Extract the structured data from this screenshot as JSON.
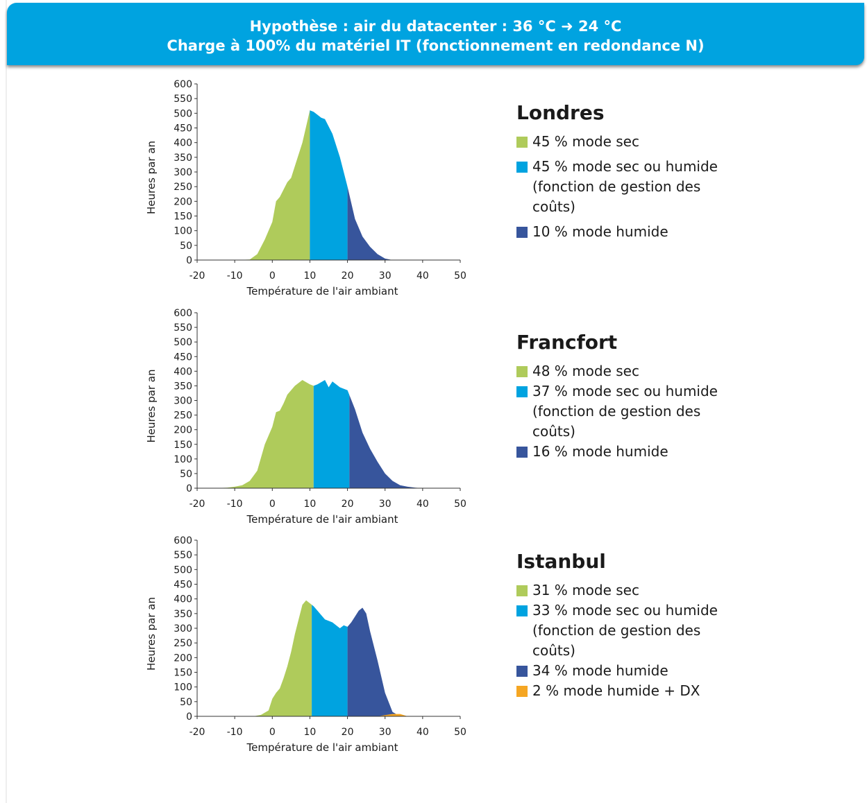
{
  "banner": {
    "line1": "Hypothèse : air du datacenter : 36 °C ➜ 24 °C",
    "line2": "Charge à 100% du matériel IT (fonctionnement en redondance N)"
  },
  "colors": {
    "dry": "#afcb5b",
    "dry_or_wet": "#00a3e0",
    "wet": "#37559c",
    "wet_dx": "#f5a623",
    "banner": "#00a3e0"
  },
  "chart_data": [
    {
      "type": "area",
      "title": "Londres",
      "xlabel": "Température de l'air ambiant",
      "ylabel": "Heures par an",
      "xlim": [
        -20,
        50
      ],
      "ylim": [
        0,
        600
      ],
      "xticks": [
        -20,
        -10,
        0,
        10,
        20,
        30,
        40,
        50
      ],
      "yticks": [
        0,
        50,
        100,
        150,
        200,
        250,
        300,
        350,
        400,
        450,
        500,
        550,
        600
      ],
      "x": [
        -20,
        -10,
        -6,
        -4,
        -2,
        0,
        1,
        2,
        4,
        5,
        6,
        8,
        10,
        11,
        12,
        13,
        14,
        16,
        18,
        20,
        22,
        24,
        26,
        28,
        30,
        32,
        34,
        50
      ],
      "series": [
        {
          "name": "45 % mode sec",
          "color_key": "dry",
          "x_range": [
            -20,
            10
          ]
        },
        {
          "name": "45 % mode sec ou humide (fonction de gestion des coûts)",
          "color_key": "dry_or_wet",
          "x_range": [
            10,
            20
          ]
        },
        {
          "name": "10 % mode humide",
          "color_key": "wet",
          "x_range": [
            20,
            50
          ]
        }
      ],
      "values": [
        0,
        0,
        2,
        20,
        70,
        130,
        200,
        215,
        265,
        280,
        320,
        400,
        510,
        505,
        495,
        485,
        480,
        430,
        350,
        250,
        140,
        80,
        45,
        20,
        5,
        0,
        0,
        0
      ]
    },
    {
      "type": "area",
      "title": "Francfort",
      "xlabel": "Température de l'air ambiant",
      "ylabel": "Heures par an",
      "xlim": [
        -20,
        50
      ],
      "ylim": [
        0,
        600
      ],
      "xticks": [
        -20,
        -10,
        0,
        10,
        20,
        30,
        40,
        50
      ],
      "yticks": [
        0,
        50,
        100,
        150,
        200,
        250,
        300,
        350,
        400,
        450,
        500,
        550,
        600
      ],
      "x": [
        -20,
        -16,
        -12,
        -10,
        -8,
        -6,
        -4,
        -2,
        0,
        1,
        2,
        3,
        4,
        6,
        8,
        10,
        11,
        12,
        14,
        15,
        16,
        18,
        20,
        22,
        24,
        26,
        28,
        30,
        32,
        34,
        36,
        38,
        40,
        50
      ],
      "series": [
        {
          "name": "48 % mode sec",
          "color_key": "dry",
          "x_range": [
            -20,
            11
          ]
        },
        {
          "name": "37 % mode sec ou humide (fonction de gestion des coûts)",
          "color_key": "dry_or_wet",
          "x_range": [
            11,
            20.5
          ]
        },
        {
          "name": "16 % mode humide",
          "color_key": "wet",
          "x_range": [
            20.5,
            50
          ]
        }
      ],
      "values": [
        0,
        0,
        2,
        5,
        10,
        25,
        60,
        150,
        210,
        260,
        265,
        290,
        320,
        350,
        370,
        355,
        350,
        355,
        370,
        345,
        365,
        345,
        335,
        270,
        190,
        135,
        90,
        50,
        25,
        10,
        5,
        2,
        0,
        0
      ]
    },
    {
      "type": "area",
      "title": "Istanbul",
      "xlabel": "Température de l'air ambiant",
      "ylabel": "Heures par an",
      "xlim": [
        -20,
        50
      ],
      "ylim": [
        0,
        600
      ],
      "xticks": [
        -20,
        -10,
        0,
        10,
        20,
        30,
        40,
        50
      ],
      "yticks": [
        0,
        50,
        100,
        150,
        200,
        250,
        300,
        350,
        400,
        450,
        500,
        550,
        600
      ],
      "x": [
        -20,
        -5,
        -3,
        -1,
        0,
        1,
        2,
        3,
        4,
        5,
        6,
        7,
        8,
        9,
        10,
        11,
        12,
        14,
        16,
        18,
        19,
        20,
        21,
        22,
        23,
        24,
        25,
        26,
        28,
        30,
        32,
        34,
        36,
        50
      ],
      "series": [
        {
          "name": "31 % mode sec",
          "color_key": "dry",
          "x_range": [
            -20,
            10.5
          ]
        },
        {
          "name": "33 % mode sec ou humide (fonction de gestion des coûts)",
          "color_key": "dry_or_wet",
          "x_range": [
            10.5,
            20
          ]
        },
        {
          "name": "34 % mode humide",
          "color_key": "wet",
          "x_range": [
            20,
            50
          ]
        },
        {
          "name": "2 % mode humide + DX",
          "color_key": "wet_dx",
          "x_range": [
            28,
            36
          ],
          "x": [
            28,
            30,
            32,
            34,
            36
          ],
          "values": [
            0,
            4,
            8,
            8,
            0
          ]
        }
      ],
      "values": [
        0,
        0,
        5,
        20,
        60,
        80,
        95,
        130,
        170,
        220,
        280,
        330,
        380,
        395,
        385,
        375,
        360,
        330,
        320,
        300,
        310,
        305,
        320,
        340,
        360,
        370,
        350,
        290,
        190,
        80,
        15,
        0,
        0,
        0
      ]
    }
  ]
}
